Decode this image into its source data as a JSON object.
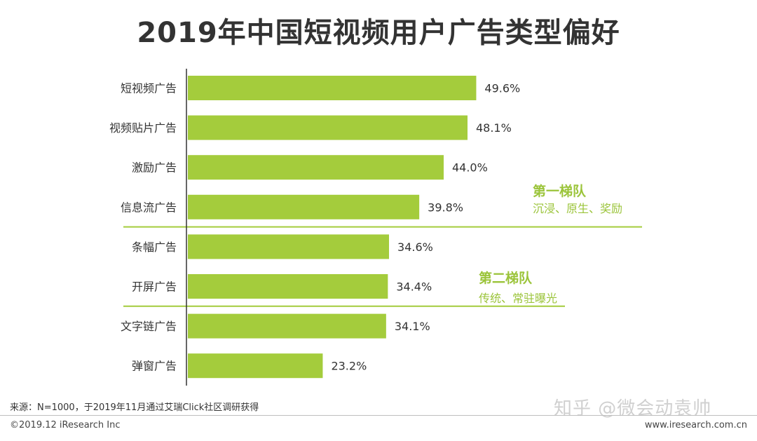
{
  "title": "2019年中国短视频用户广告类型偏好",
  "colors": {
    "bar": "#a4cc3c",
    "accent": "#9bc43a",
    "axis": "#333333",
    "text": "#333333",
    "divider": "#a4cc3c"
  },
  "tiers": [
    {
      "title": "第一梯队",
      "desc": "沉浸、原生、奖励"
    },
    {
      "title": "第二梯队",
      "desc": "传统、常驻曝光"
    }
  ],
  "footer": {
    "source": "来源：N=1000，于2019年11月通过艾瑞Click社区调研获得",
    "copyright": "©2019.12 iResearch Inc",
    "url": "www.iresearch.com.cn",
    "watermark": "知乎 @微会动袁帅"
  },
  "chart_data": {
    "type": "bar",
    "orientation": "horizontal",
    "title": "2019年中国短视频用户广告类型偏好",
    "categories": [
      "短视频广告",
      "视频贴片广告",
      "激励广告",
      "信息流广告",
      "条幅广告",
      "开屏广告",
      "文字链广告",
      "弹窗广告"
    ],
    "values": [
      49.6,
      48.1,
      44.0,
      39.8,
      34.6,
      34.4,
      34.1,
      23.2
    ],
    "value_labels": [
      "49.6%",
      "48.1%",
      "44.0%",
      "39.8%",
      "34.6%",
      "34.4%",
      "34.1%",
      "23.2%"
    ],
    "unit": "%",
    "xlim": [
      0,
      50
    ],
    "grid": false,
    "legend": "none"
  }
}
